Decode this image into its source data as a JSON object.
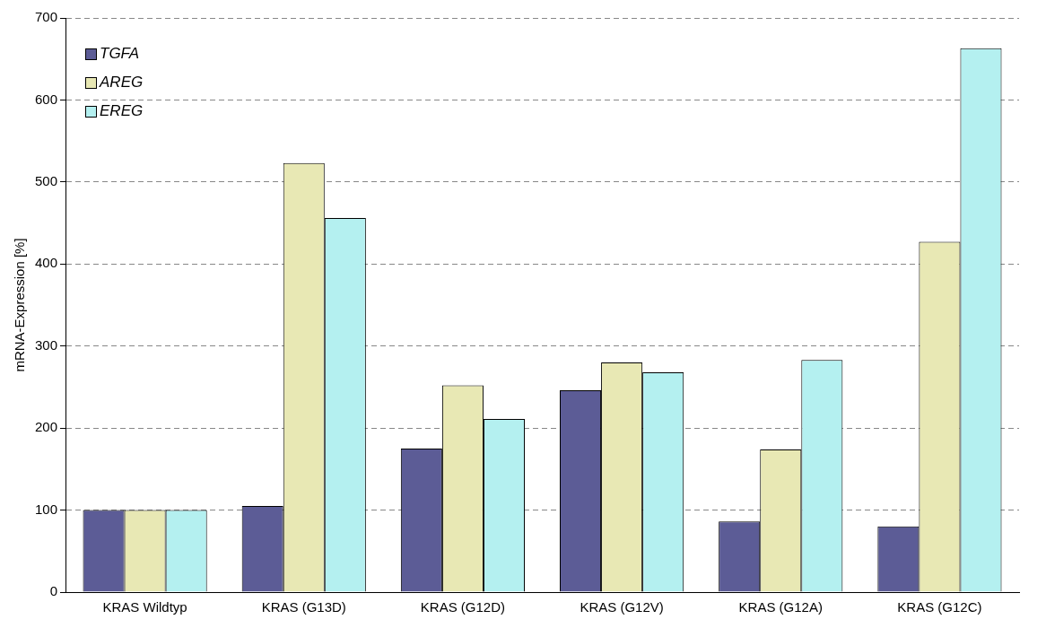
{
  "chart_data": {
    "type": "bar",
    "ylabel": "mRNA-Expression [%]",
    "categories": [
      "KRAS Wildtyp",
      "KRAS (G13D)",
      "KRAS (G12D)",
      "KRAS (G12V)",
      "KRAS (G12A)",
      "KRAS (G12C)"
    ],
    "series": [
      {
        "name": "TGFA",
        "color": "#5c5c96",
        "values": [
          100,
          105,
          175,
          246,
          86,
          80
        ]
      },
      {
        "name": "AREG",
        "color": "#e8e8b4",
        "values": [
          100,
          523,
          252,
          280,
          174,
          427
        ]
      },
      {
        "name": "EREG",
        "color": "#b4f0f0",
        "values": [
          100,
          456,
          211,
          268,
          283,
          663
        ]
      }
    ],
    "ylim": [
      0,
      700
    ],
    "yticks": [
      0,
      100,
      200,
      300,
      400,
      500,
      600,
      700
    ],
    "grid": "y",
    "legend": "top left"
  }
}
